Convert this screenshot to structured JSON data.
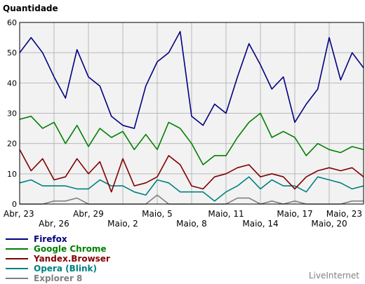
{
  "chart_data": {
    "type": "line",
    "ylabel": "Quantidade",
    "ylim": [
      0,
      60
    ],
    "yticks": [
      0,
      10,
      20,
      30,
      40,
      50,
      60
    ],
    "x_tick_labels": [
      "Abr, 23",
      "Abr, 26",
      "Abr, 29",
      "Maio, 2",
      "Maio, 5",
      "Maio, 8",
      "Maio, 11",
      "Maio, 14",
      "Maio, 17",
      "Maio, 20",
      "Maio, 23"
    ],
    "x_tick_indices": [
      0,
      3,
      6,
      9,
      12,
      15,
      18,
      21,
      24,
      27,
      30
    ],
    "grid": true,
    "legend_position": "bottom-left",
    "series": [
      {
        "name": "Firefox",
        "color": "#000080",
        "values": [
          50,
          55,
          50,
          42,
          35,
          51,
          42,
          39,
          29,
          26,
          25,
          39,
          47,
          50,
          57,
          29,
          26,
          33,
          30,
          42,
          53,
          46,
          38,
          42,
          27,
          33,
          38,
          55,
          41,
          50,
          45
        ]
      },
      {
        "name": "Google Chrome",
        "color": "#008000",
        "values": [
          28,
          29,
          25,
          27,
          20,
          26,
          19,
          25,
          22,
          24,
          18,
          23,
          18,
          27,
          25,
          20,
          13,
          16,
          16,
          22,
          27,
          30,
          22,
          24,
          22,
          16,
          20,
          18,
          17,
          19,
          18
        ]
      },
      {
        "name": "Yandex.Browser",
        "color": "#800000",
        "values": [
          18,
          11,
          15,
          8,
          9,
          15,
          10,
          14,
          4,
          15,
          6,
          7,
          9,
          16,
          13,
          6,
          5,
          9,
          10,
          12,
          13,
          9,
          10,
          9,
          5,
          9,
          11,
          12,
          11,
          12,
          9
        ]
      },
      {
        "name": "Opera (Blink)",
        "color": "#008080",
        "values": [
          7,
          8,
          6,
          6,
          6,
          5,
          5,
          8,
          6,
          6,
          4,
          3,
          8,
          7,
          4,
          4,
          4,
          1,
          4,
          6,
          9,
          5,
          8,
          6,
          6,
          4,
          9,
          8,
          7,
          5,
          6
        ]
      },
      {
        "name": "Explorer 8",
        "color": "#808080",
        "values": [
          0,
          0,
          0,
          1,
          1,
          2,
          0,
          0,
          0,
          0,
          0,
          0,
          3,
          0,
          0,
          0,
          0,
          0,
          0,
          2,
          2,
          0,
          1,
          0,
          1,
          0,
          0,
          0,
          0,
          1,
          1
        ]
      }
    ]
  },
  "credit": "LiveInternet"
}
